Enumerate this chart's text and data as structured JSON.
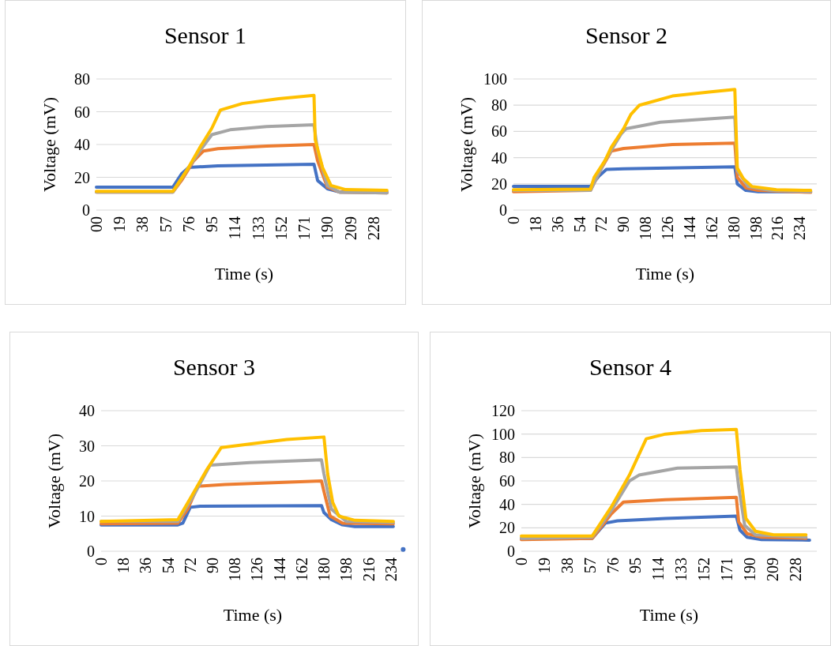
{
  "chart_data": [
    {
      "type": "line",
      "title": "Sensor 1",
      "xlabel": "Time (s)",
      "ylabel": "Voltage (mV)",
      "xlim": [
        0,
        243
      ],
      "ylim": [
        0,
        80
      ],
      "yticks": [
        0,
        20,
        40,
        60,
        80
      ],
      "xticks": [
        {
          "value": 0,
          "label": "00"
        },
        19,
        38,
        57,
        76,
        95,
        114,
        133,
        152,
        171,
        190,
        209,
        228
      ],
      "grid": "y",
      "series": [
        {
          "color": "#4472c4",
          "x": [
            0,
            63,
            70,
            76,
            100,
            179,
            182,
            190,
            200,
            239
          ],
          "values": [
            14,
            14,
            22,
            26,
            27,
            28,
            18,
            13,
            11,
            11
          ]
        },
        {
          "color": "#ed7d31",
          "x": [
            0,
            63,
            70,
            80,
            88,
            100,
            140,
            179,
            182,
            190,
            200,
            239
          ],
          "values": [
            11,
            11,
            18,
            30,
            36,
            37.5,
            39,
            40,
            30,
            14,
            11,
            10.5
          ]
        },
        {
          "color": "#a5a5a5",
          "x": [
            0,
            63,
            75,
            85,
            95,
            110,
            140,
            179,
            182,
            190,
            200,
            239
          ],
          "values": [
            11,
            11,
            25,
            36,
            46,
            49,
            51,
            52,
            36,
            15,
            11,
            10.5
          ]
        },
        {
          "color": "#ffc000",
          "x": [
            0,
            63,
            75,
            85,
            95,
            102,
            120,
            150,
            179,
            180,
            186,
            193,
            205,
            239
          ],
          "values": [
            11.5,
            11.5,
            25,
            38,
            50,
            61,
            65,
            68,
            70,
            43,
            26,
            15,
            12.5,
            12
          ]
        }
      ]
    },
    {
      "type": "line",
      "title": "Sensor 2",
      "xlabel": "Time (s)",
      "ylabel": "Voltage (mV)",
      "xlim": [
        0,
        248
      ],
      "ylim": [
        0,
        100
      ],
      "yticks": [
        0,
        20,
        40,
        60,
        80,
        100
      ],
      "xticks": [
        0,
        18,
        36,
        54,
        72,
        90,
        108,
        126,
        144,
        162,
        180,
        198,
        216,
        234
      ],
      "grid": "y",
      "series": [
        {
          "color": "#4472c4",
          "x": [
            0,
            63,
            70,
            76,
            90,
            181,
            183,
            190,
            200,
            243
          ],
          "values": [
            18,
            18,
            26,
            31,
            31.5,
            33,
            20,
            15,
            14,
            14
          ]
        },
        {
          "color": "#ed7d31",
          "x": [
            0,
            63,
            72,
            80,
            90,
            130,
            181,
            183,
            190,
            200,
            243
          ],
          "values": [
            14,
            15,
            32,
            45,
            47,
            50,
            51,
            25,
            17,
            15,
            13.5
          ]
        },
        {
          "color": "#a5a5a5",
          "x": [
            0,
            63,
            75,
            88,
            92,
            120,
            181,
            183,
            192,
            210,
            243
          ],
          "values": [
            15,
            15,
            38,
            58,
            62,
            67,
            71,
            30,
            18,
            15,
            14
          ]
        },
        {
          "color": "#ffc000",
          "x": [
            0,
            63,
            66,
            75,
            80,
            90,
            96,
            103,
            130,
            160,
            181,
            183,
            188,
            195,
            215,
            243
          ],
          "values": [
            15.5,
            16,
            25,
            38,
            48,
            62,
            73,
            80,
            87,
            90,
            92,
            32,
            24,
            18,
            15.5,
            15
          ]
        }
      ]
    },
    {
      "type": "line",
      "title": "Sensor 3",
      "xlabel": "Time (s)",
      "ylabel": "Voltage (mV)",
      "xlim": [
        0,
        245
      ],
      "ylim": [
        0,
        40
      ],
      "yticks": [
        0,
        10,
        20,
        30,
        40
      ],
      "xticks": [
        0,
        18,
        36,
        54,
        72,
        90,
        108,
        126,
        144,
        162,
        180,
        198,
        216,
        234
      ],
      "grid": "y",
      "series": [
        {
          "color": "#4472c4",
          "x": [
            0,
            62,
            66,
            72,
            80,
            178,
            180,
            186,
            195,
            205,
            236
          ],
          "values": [
            7.5,
            7.5,
            8,
            12.5,
            12.8,
            13,
            11,
            9,
            7.5,
            7,
            7
          ]
        },
        {
          "type": "scatter",
          "color": "#4472c4",
          "x": [
            244
          ],
          "values": [
            0.5
          ]
        },
        {
          "color": "#ed7d31",
          "x": [
            0,
            62,
            70,
            78,
            100,
            178,
            180,
            185,
            195,
            236
          ],
          "values": [
            7.8,
            8,
            12,
            18.5,
            19,
            20,
            17,
            10,
            8,
            7.8
          ]
        },
        {
          "color": "#a5a5a5",
          "x": [
            0,
            62,
            75,
            88,
            120,
            178,
            180,
            186,
            198,
            236
          ],
          "values": [
            8.5,
            8.5,
            16,
            24.5,
            25.2,
            26,
            22,
            12,
            8.5,
            8.2
          ]
        },
        {
          "color": "#ffc000",
          "x": [
            0,
            62,
            72,
            85,
            97,
            120,
            150,
            180,
            183,
            187,
            192,
            205,
            236
          ],
          "values": [
            8.5,
            9,
            15,
            23,
            29.5,
            30.5,
            31.8,
            32.5,
            22,
            14,
            10,
            8.8,
            8.5
          ]
        }
      ]
    },
    {
      "type": "line",
      "title": "Sensor 4",
      "xlabel": "Time (s)",
      "ylabel": "Voltage (mV)",
      "xlim": [
        0,
        246
      ],
      "ylim": [
        0,
        120
      ],
      "yticks": [
        0,
        20,
        40,
        60,
        80,
        100,
        120
      ],
      "xticks": [
        0,
        19,
        38,
        57,
        76,
        95,
        114,
        133,
        152,
        171,
        190,
        209,
        228
      ],
      "grid": "y",
      "series": [
        {
          "color": "#4472c4",
          "x": [
            0,
            59,
            70,
            80,
            120,
            179,
            182,
            188,
            200,
            240
          ],
          "values": [
            11,
            11,
            24,
            26,
            28,
            30,
            18,
            12,
            10,
            9.5
          ]
        },
        {
          "color": "#ed7d31",
          "x": [
            0,
            59,
            75,
            85,
            120,
            179,
            181,
            188,
            200,
            237
          ],
          "values": [
            10,
            11,
            32,
            42,
            44,
            46,
            25,
            15,
            12,
            11
          ]
        },
        {
          "color": "#a5a5a5",
          "x": [
            0,
            59,
            75,
            90,
            98,
            130,
            179,
            181,
            186,
            195,
            237
          ],
          "values": [
            11,
            12,
            35,
            60,
            65,
            71,
            72,
            55,
            22,
            14,
            12
          ]
        },
        {
          "color": "#ffc000",
          "x": [
            0,
            59,
            75,
            90,
            104,
            120,
            150,
            179,
            182,
            187,
            195,
            210,
            237
          ],
          "values": [
            13,
            13,
            38,
            65,
            96,
            100,
            103,
            104,
            70,
            28,
            17,
            14,
            14
          ]
        }
      ]
    }
  ]
}
